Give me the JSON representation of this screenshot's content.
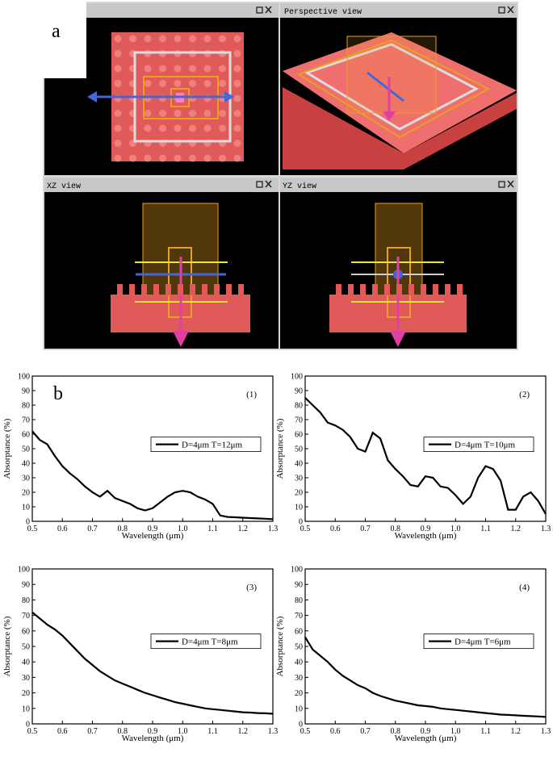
{
  "panel_labels": {
    "a": "a",
    "b": "b"
  },
  "views": [
    "Perspective view",
    "XZ view",
    "YZ view"
  ],
  "chart_data": [
    {
      "type": "line",
      "annotation": "(1)",
      "xlabel": "Wavelength (μm)",
      "ylabel": "Absorptance (%)",
      "legend_position": "right",
      "x": [
        0.5,
        0.525,
        0.55,
        0.575,
        0.6,
        0.625,
        0.65,
        0.675,
        0.7,
        0.725,
        0.75,
        0.775,
        0.8,
        0.825,
        0.85,
        0.875,
        0.9,
        0.925,
        0.95,
        0.975,
        1.0,
        1.025,
        1.05,
        1.075,
        1.1,
        1.125,
        1.15,
        1.175,
        1.2,
        1.225,
        1.25,
        1.275,
        1.3
      ],
      "series": [
        {
          "name": "D=4μm T=12μm",
          "color": "#000000",
          "values": [
            62,
            56,
            53,
            45,
            38,
            33,
            29,
            24,
            20,
            17,
            21,
            16,
            14,
            12,
            9,
            7.5,
            9,
            13,
            17,
            20,
            21,
            20,
            17,
            15,
            12,
            4,
            3,
            2.8,
            2.5,
            2.2,
            2,
            1.8,
            1.5
          ]
        }
      ],
      "xlim": [
        0.5,
        1.3
      ],
      "ylim": [
        0,
        100
      ],
      "xticks": [
        0.5,
        0.6,
        0.7,
        0.8,
        0.9,
        {
          "value": 1,
          "label": "1.0"
        },
        1.1,
        1.2,
        1.3
      ],
      "yticks": [
        0,
        10,
        20,
        30,
        40,
        50,
        60,
        70,
        80,
        90,
        100
      ]
    },
    {
      "type": "line",
      "annotation": "(2)",
      "xlabel": "Wavelength (μm)",
      "ylabel": "Absorptance (%)",
      "legend_position": "right",
      "x": [
        0.5,
        0.525,
        0.55,
        0.575,
        0.6,
        0.625,
        0.65,
        0.675,
        0.7,
        0.725,
        0.75,
        0.775,
        0.8,
        0.825,
        0.85,
        0.875,
        0.9,
        0.925,
        0.95,
        0.975,
        1.0,
        1.025,
        1.05,
        1.075,
        1.1,
        1.125,
        1.15,
        1.175,
        1.2,
        1.225,
        1.25,
        1.275,
        1.3
      ],
      "series": [
        {
          "name": "D=4μm T=10μm",
          "color": "#000000",
          "values": [
            85,
            80,
            75,
            68,
            66,
            63,
            58,
            50,
            48,
            61,
            57,
            42,
            36,
            31,
            25,
            24,
            31,
            30,
            24,
            23,
            18,
            12,
            17,
            30,
            38,
            36,
            28,
            8,
            8,
            17,
            20,
            14,
            5
          ]
        }
      ],
      "xlim": [
        0.5,
        1.3
      ],
      "ylim": [
        0,
        100
      ],
      "xticks": [
        0.5,
        0.6,
        0.7,
        0.8,
        0.9,
        {
          "value": 1,
          "label": "1.0"
        },
        1.1,
        1.2,
        1.3
      ],
      "yticks": [
        0,
        10,
        20,
        30,
        40,
        50,
        60,
        70,
        80,
        90,
        100
      ]
    },
    {
      "type": "line",
      "annotation": "(3)",
      "xlabel": "Wavelength (μm)",
      "ylabel": "Absorptance (%)",
      "legend_position": "right",
      "x": [
        0.5,
        0.525,
        0.55,
        0.575,
        0.6,
        0.625,
        0.65,
        0.675,
        0.7,
        0.725,
        0.75,
        0.775,
        0.8,
        0.825,
        0.85,
        0.875,
        0.9,
        0.925,
        0.95,
        0.975,
        1.0,
        1.025,
        1.05,
        1.075,
        1.1,
        1.125,
        1.15,
        1.175,
        1.2,
        1.225,
        1.25,
        1.275,
        1.3
      ],
      "series": [
        {
          "name": "D=4μm T=8μm",
          "color": "#000000",
          "values": [
            72,
            68,
            64,
            61,
            57,
            52,
            47,
            42,
            38,
            34,
            31,
            28,
            26,
            24,
            22,
            20,
            18.5,
            17,
            15.5,
            14,
            13,
            12,
            11,
            10,
            9.5,
            9,
            8.5,
            8,
            7.5,
            7.3,
            7,
            6.8,
            6.5
          ]
        }
      ],
      "xlim": [
        0.5,
        1.3
      ],
      "ylim": [
        0,
        100
      ],
      "xticks": [
        0.5,
        0.6,
        0.7,
        0.8,
        0.9,
        {
          "value": 1,
          "label": "1.0"
        },
        1.1,
        1.2,
        1.3
      ],
      "yticks": [
        0,
        10,
        20,
        30,
        40,
        50,
        60,
        70,
        80,
        90,
        100
      ]
    },
    {
      "type": "line",
      "annotation": "(4)",
      "xlabel": "Wavelength (μm)",
      "ylabel": "Absorptance (%)",
      "legend_position": "right",
      "x": [
        0.5,
        0.525,
        0.55,
        0.575,
        0.6,
        0.625,
        0.65,
        0.675,
        0.7,
        0.725,
        0.75,
        0.775,
        0.8,
        0.825,
        0.85,
        0.875,
        0.9,
        0.925,
        0.95,
        0.975,
        1.0,
        1.025,
        1.05,
        1.075,
        1.1,
        1.125,
        1.15,
        1.175,
        1.2,
        1.225,
        1.25,
        1.275,
        1.3
      ],
      "series": [
        {
          "name": "D=4μm T=6μm",
          "color": "#000000",
          "values": [
            56,
            48,
            44,
            40,
            35,
            31,
            28,
            25,
            23,
            20,
            18,
            16.5,
            15,
            14,
            13,
            12,
            11.5,
            11,
            10,
            9.5,
            9,
            8.5,
            8,
            7.5,
            7,
            6.5,
            6,
            5.8,
            5.5,
            5.2,
            5,
            4.8,
            4.5
          ]
        }
      ],
      "xlim": [
        0.5,
        1.3
      ],
      "ylim": [
        0,
        100
      ],
      "xticks": [
        0.5,
        0.6,
        0.7,
        0.8,
        0.9,
        {
          "value": 1,
          "label": "1.0"
        },
        1.1,
        1.2,
        1.3
      ],
      "yticks": [
        0,
        10,
        20,
        30,
        40,
        50,
        60,
        70,
        80,
        90,
        100
      ]
    }
  ]
}
